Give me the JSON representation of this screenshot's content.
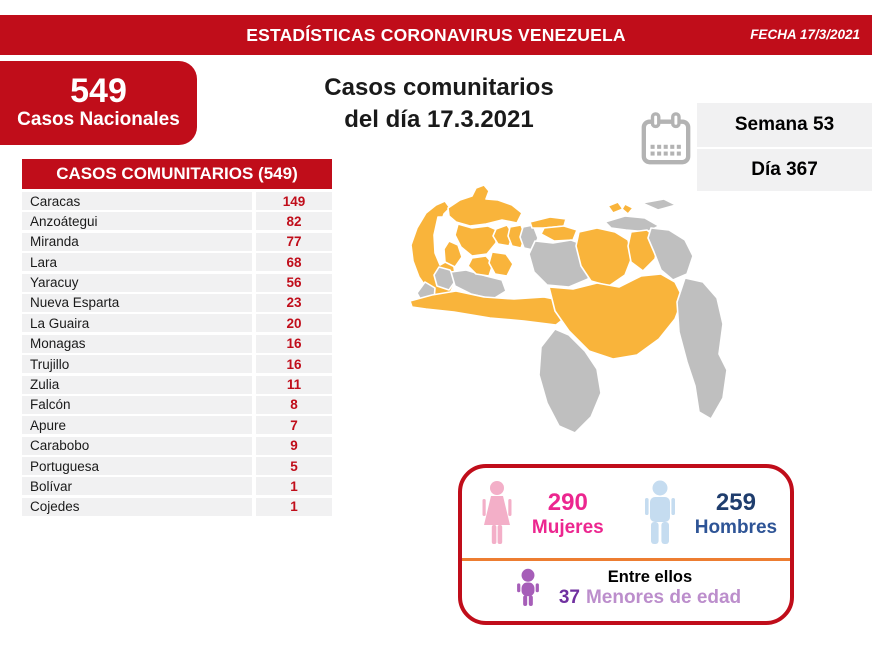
{
  "banner": {
    "title": "ESTADÍSTICAS CORONAVIRUS VENEZUELA",
    "date_label": "FECHA 17/3/2021"
  },
  "national": {
    "value": "549",
    "label": "Casos Nacionales"
  },
  "headline": {
    "line1": "Casos comunitarios",
    "line2": "del día 17.3.2021"
  },
  "period": {
    "week": "Semana 53",
    "day": "Día 367"
  },
  "table": {
    "header": "CASOS COMUNITARIOS (549)",
    "rows": [
      {
        "state": "Caracas",
        "value": "149"
      },
      {
        "state": "Anzoátegui",
        "value": "82"
      },
      {
        "state": "Miranda",
        "value": "77"
      },
      {
        "state": "Lara",
        "value": "68"
      },
      {
        "state": "Yaracuy",
        "value": "56"
      },
      {
        "state": "Nueva Esparta",
        "value": "23"
      },
      {
        "state": "La Guaira",
        "value": "20"
      },
      {
        "state": "Monagas",
        "value": "16"
      },
      {
        "state": "Trujillo",
        "value": "16"
      },
      {
        "state": "Zulia",
        "value": "11"
      },
      {
        "state": "Falcón",
        "value": "8"
      },
      {
        "state": "Apure",
        "value": "7"
      },
      {
        "state": "Carabobo",
        "value": "9"
      },
      {
        "state": "Portuguesa",
        "value": "5"
      },
      {
        "state": "Bolívar",
        "value": "1"
      },
      {
        "state": "Cojedes",
        "value": "1"
      }
    ]
  },
  "demographics": {
    "women_value": "290",
    "women_label": "Mujeres",
    "men_value": "259",
    "men_label": "Hombres",
    "minors_intro": "Entre ellos",
    "minors_value": "37",
    "minors_label": "Menores de edad"
  },
  "map": {
    "affected_states": [
      "zulia",
      "falcon",
      "trujillo",
      "lara",
      "portuguesa",
      "cojedes",
      "yaracuy",
      "carabobo",
      "caracas-la-guaira",
      "miranda",
      "apure",
      "anzoategui",
      "nueva-esparta",
      "monagas",
      "bolivar"
    ],
    "unaffected_states": [
      "merida",
      "tachira",
      "barinas",
      "aragua",
      "guarico",
      "sucre",
      "islas-orientales",
      "delta-amacuro",
      "amazonas",
      "esequibo"
    ]
  },
  "colors": {
    "red": "#C00D1A",
    "row_bg": "#F1F1F2",
    "map_affected": "#F9B43B",
    "map_unaffected": "#BFBFBF",
    "women": "#EC268F",
    "women_icon": "#F3AFC8",
    "men_number": "#1F3D6D",
    "men_label": "#2E5496",
    "men_icon": "#C5DCF0",
    "minors_number": "#7030A0",
    "minors_label": "#BC8ECC",
    "minors_icon": "#A65EB8",
    "divider_orange": "#ED7D31",
    "calendar_icon": "#B3B3B3",
    "text_dark": "#1A1A1A"
  },
  "chart_data": {
    "type": "table",
    "title": "CASOS COMUNITARIOS (549)",
    "categories": [
      "Caracas",
      "Anzoátegui",
      "Miranda",
      "Lara",
      "Yaracuy",
      "Nueva Esparta",
      "La Guaira",
      "Monagas",
      "Trujillo",
      "Zulia",
      "Falcón",
      "Apure",
      "Carabobo",
      "Portuguesa",
      "Bolívar",
      "Cojedes"
    ],
    "values": [
      149,
      82,
      77,
      68,
      56,
      23,
      20,
      16,
      16,
      11,
      8,
      7,
      9,
      5,
      1,
      1
    ],
    "total_national_cases": 549,
    "date": "17/3/2021",
    "week": 53,
    "day": 367,
    "demographics": {
      "mujeres": 290,
      "hombres": 259,
      "menores_de_edad": 37
    },
    "map_note": "Venezuela choropleth: states with community cases filled orange, others gray"
  }
}
